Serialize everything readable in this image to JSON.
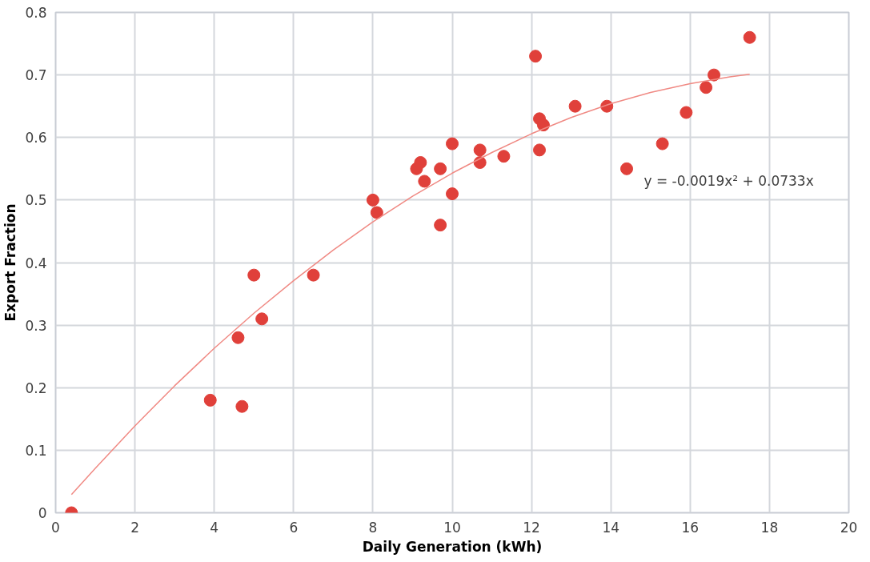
{
  "chart_data": {
    "type": "scatter",
    "xlabel": "Daily Generation (kWh)",
    "ylabel": "Export Fraction",
    "xlim": [
      0,
      20
    ],
    "ylim": [
      0,
      0.8
    ],
    "xticks": [
      0,
      2,
      4,
      6,
      8,
      10,
      12,
      14,
      16,
      18,
      20
    ],
    "yticks": [
      0,
      0.1,
      0.2,
      0.3,
      0.4,
      0.5,
      0.6,
      0.7,
      0.8
    ],
    "grid": true,
    "marker": "circle",
    "annotations": [
      "y = -0.0019x² + 0.0733x"
    ],
    "series": [
      {
        "color": "#e0403a",
        "x": [
          0.4,
          3.9,
          4.6,
          4.7,
          5.0,
          5.2,
          6.5,
          8.0,
          8.1,
          9.1,
          9.2,
          9.3,
          9.7,
          9.7,
          10,
          10,
          10.7,
          10.7,
          11.3,
          12.1,
          12.2,
          12.2,
          12.3,
          13.1,
          13.9,
          14.4,
          15.3,
          15.9,
          16.4,
          16.6,
          17.5
        ],
        "values": [
          0,
          0.18,
          0.28,
          0.17,
          0.38,
          0.31,
          0.38,
          0.5,
          0.48,
          0.55,
          0.56,
          0.53,
          0.55,
          0.46,
          0.59,
          0.51,
          0.58,
          0.56,
          0.57,
          0.73,
          0.63,
          0.58,
          0.62,
          0.65,
          0.65,
          0.55,
          0.59,
          0.64,
          0.68,
          0.7,
          0.76
        ]
      },
      {
        "type": "line",
        "color": "#f08a84",
        "marker": "none",
        "x": [
          0.4,
          1,
          2,
          3,
          4,
          5,
          6,
          7,
          8,
          9,
          10,
          11,
          12,
          13,
          14,
          15,
          16,
          17,
          17.5
        ],
        "values": [
          0.029,
          0.071,
          0.139,
          0.203,
          0.263,
          0.319,
          0.371,
          0.42,
          0.465,
          0.506,
          0.543,
          0.576,
          0.606,
          0.632,
          0.654,
          0.672,
          0.686,
          0.697,
          0.701
        ]
      }
    ]
  }
}
